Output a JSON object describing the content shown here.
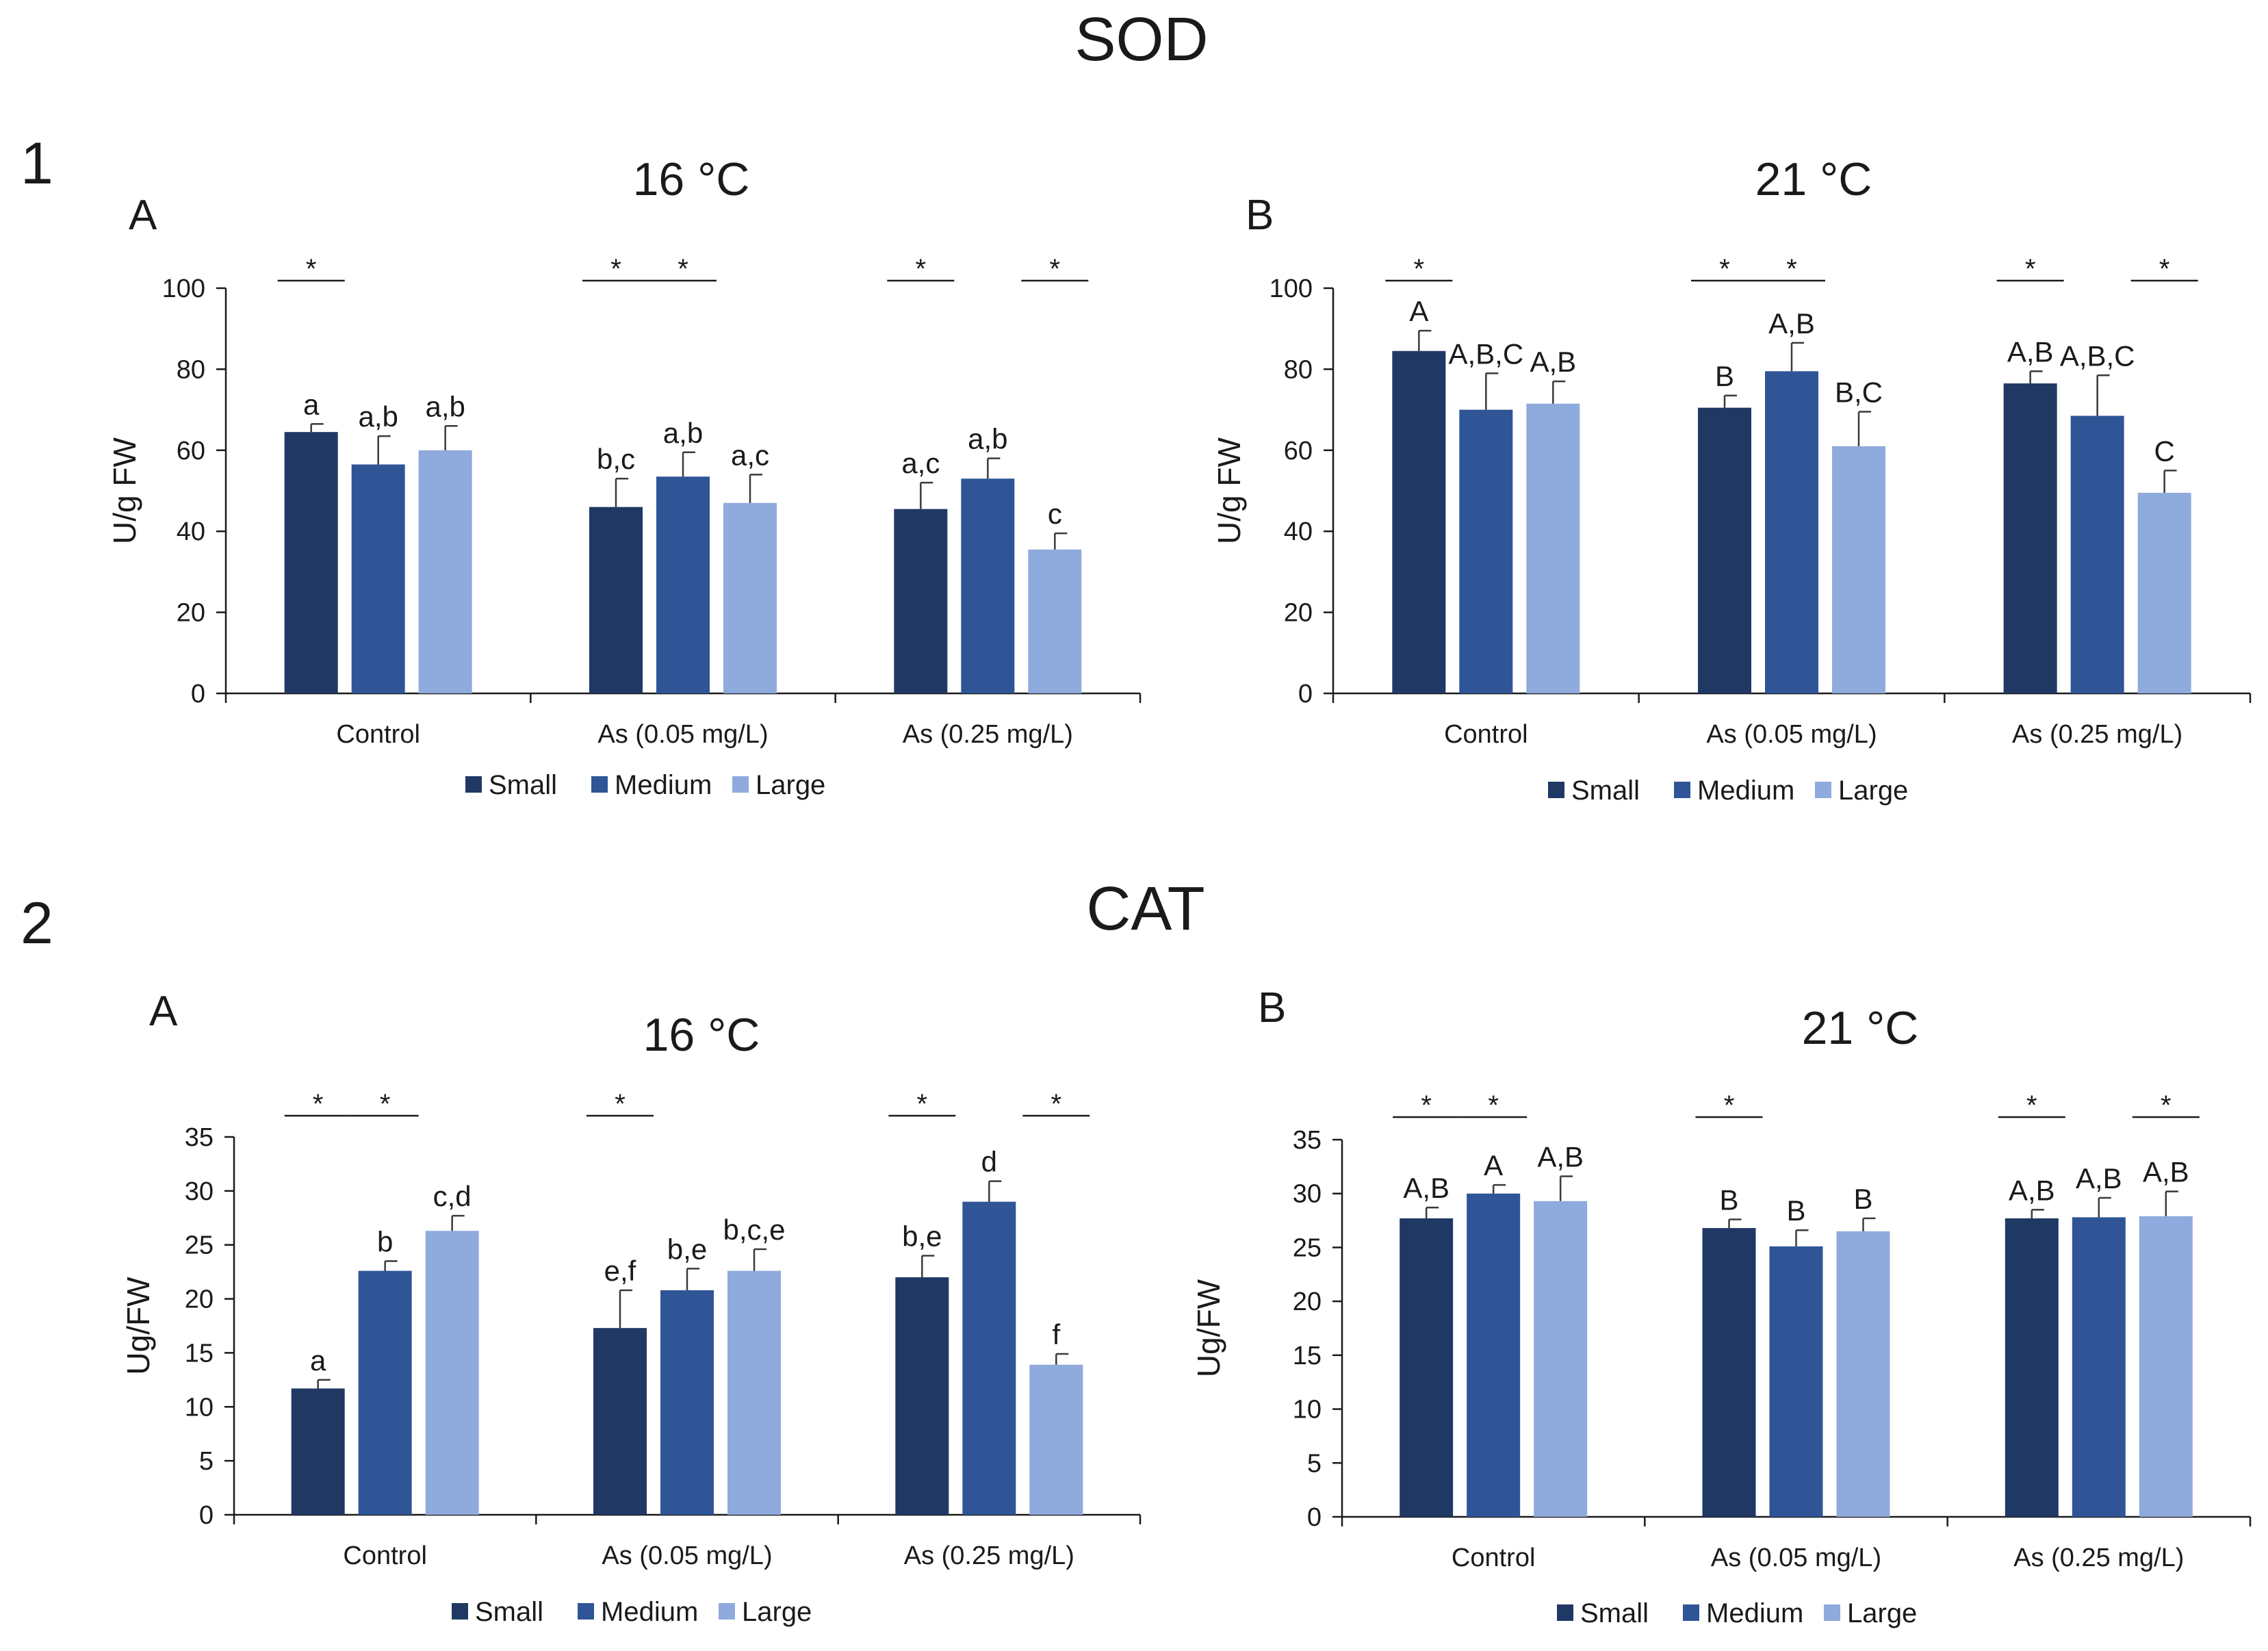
{
  "figure": {
    "section_1_number": "1",
    "section_1_title": "SOD",
    "section_2_number": "2",
    "section_2_title": "CAT"
  },
  "legend": {
    "labels": [
      "Small",
      "Medium",
      "Large"
    ],
    "colors": [
      "#203864",
      "#2f5597",
      "#8faadc"
    ]
  },
  "chart_data": [
    {
      "id": "sod16",
      "type": "bar",
      "panel_label": "A",
      "title": "16 °C",
      "ylabel": "U/g FW",
      "xlabel": "",
      "ylim": [
        0,
        100
      ],
      "yticks": [
        0,
        20,
        40,
        60,
        80,
        100
      ],
      "categories": [
        "Control",
        "As (0.05 mg/L)",
        "As (0.25 mg/L)"
      ],
      "series": [
        {
          "name": "Small",
          "values": [
            64.5,
            46,
            45.5
          ],
          "errors": [
            2,
            7,
            6.5
          ],
          "letters": [
            "a",
            "b,c",
            "a,c"
          ]
        },
        {
          "name": "Medium",
          "values": [
            56.5,
            53.5,
            53
          ],
          "errors": [
            7,
            6,
            5
          ],
          "letters": [
            "a,b",
            "a,b",
            "a,b"
          ]
        },
        {
          "name": "Large",
          "values": [
            60,
            47,
            35.5
          ],
          "errors": [
            6,
            7,
            4
          ],
          "letters": [
            "a,b",
            "a,c",
            "c"
          ]
        }
      ],
      "significance": [
        {
          "group": 0,
          "pair": [
            0,
            0
          ],
          "label": "*"
        },
        {
          "group": 1,
          "pair": [
            0,
            0
          ],
          "label": "*"
        },
        {
          "group": 1,
          "pair": [
            1,
            1
          ],
          "label": "*"
        },
        {
          "group": 2,
          "pair": [
            0,
            0
          ],
          "label": "*"
        },
        {
          "group": 2,
          "pair": [
            2,
            2
          ],
          "label": "*"
        }
      ]
    },
    {
      "id": "sod21",
      "type": "bar",
      "panel_label": "B",
      "title": "21 °C",
      "ylabel": "U/g FW",
      "xlabel": "",
      "ylim": [
        0,
        100
      ],
      "yticks": [
        0,
        20,
        40,
        60,
        80,
        100
      ],
      "categories": [
        "Control",
        "As (0.05 mg/L)",
        "As (0.25 mg/L)"
      ],
      "series": [
        {
          "name": "Small",
          "values": [
            84.5,
            70.5,
            76.5
          ],
          "errors": [
            5,
            3,
            3
          ],
          "letters": [
            "A",
            "B",
            "A,B"
          ]
        },
        {
          "name": "Medium",
          "values": [
            70,
            79.5,
            68.5
          ],
          "errors": [
            9,
            7,
            10
          ],
          "letters": [
            "A,B,C",
            "A,B",
            "A,B,C"
          ]
        },
        {
          "name": "Large",
          "values": [
            71.5,
            61,
            49.5
          ],
          "errors": [
            5.5,
            8.5,
            5.5
          ],
          "letters": [
            "A,B",
            "B,C",
            "C"
          ]
        }
      ],
      "significance": [
        {
          "group": 0,
          "pair": [
            0,
            0
          ],
          "label": "*"
        },
        {
          "group": 1,
          "pair": [
            0,
            0
          ],
          "label": "*"
        },
        {
          "group": 1,
          "pair": [
            1,
            1
          ],
          "label": "*"
        },
        {
          "group": 2,
          "pair": [
            0,
            0
          ],
          "label": "*"
        },
        {
          "group": 2,
          "pair": [
            2,
            2
          ],
          "label": "*"
        }
      ]
    },
    {
      "id": "cat16",
      "type": "bar",
      "panel_label": "A",
      "title": "16 °C",
      "ylabel": "Ug/FW",
      "xlabel": "",
      "ylim": [
        0,
        35
      ],
      "yticks": [
        0,
        5,
        10,
        15,
        20,
        25,
        30,
        35
      ],
      "categories": [
        "Control",
        "As (0.05 mg/L)",
        "As (0.25 mg/L)"
      ],
      "series": [
        {
          "name": "Small",
          "values": [
            11.7,
            17.3,
            22
          ],
          "errors": [
            0.8,
            3.5,
            2
          ],
          "letters": [
            "a",
            "e,f",
            "b,e"
          ]
        },
        {
          "name": "Medium",
          "values": [
            22.6,
            20.8,
            29
          ],
          "errors": [
            0.9,
            2,
            1.9
          ],
          "letters": [
            "b",
            "b,e",
            "d"
          ]
        },
        {
          "name": "Large",
          "values": [
            26.3,
            22.6,
            13.9
          ],
          "errors": [
            1.4,
            2,
            1
          ],
          "letters": [
            "c,d",
            "b,c,e",
            "f"
          ]
        }
      ],
      "significance": [
        {
          "group": 0,
          "pair": [
            0,
            0
          ],
          "label": "*"
        },
        {
          "group": 0,
          "pair": [
            1,
            1
          ],
          "label": "*"
        },
        {
          "group": 1,
          "pair": [
            0,
            0
          ],
          "label": "*"
        },
        {
          "group": 2,
          "pair": [
            0,
            0
          ],
          "label": "*"
        },
        {
          "group": 2,
          "pair": [
            2,
            2
          ],
          "label": "*"
        }
      ]
    },
    {
      "id": "cat21",
      "type": "bar",
      "panel_label": "B",
      "title": "21 °C",
      "ylabel": "Ug/FW",
      "xlabel": "",
      "ylim": [
        0,
        35
      ],
      "yticks": [
        0,
        5,
        10,
        15,
        20,
        25,
        30,
        35
      ],
      "categories": [
        "Control",
        "As (0.05 mg/L)",
        "As (0.25 mg/L)"
      ],
      "series": [
        {
          "name": "Small",
          "values": [
            27.7,
            26.8,
            27.7
          ],
          "errors": [
            1,
            0.8,
            0.8
          ],
          "letters": [
            "A,B",
            "B",
            "A,B"
          ]
        },
        {
          "name": "Medium",
          "values": [
            30,
            25.1,
            27.8
          ],
          "errors": [
            0.8,
            1.5,
            1.8
          ],
          "letters": [
            "A",
            "B",
            "A,B"
          ]
        },
        {
          "name": "Large",
          "values": [
            29.3,
            26.5,
            27.9
          ],
          "errors": [
            2.3,
            1.2,
            2.3
          ],
          "letters": [
            "A,B",
            "B",
            "A,B"
          ]
        }
      ],
      "significance": [
        {
          "group": 0,
          "pair": [
            0,
            0
          ],
          "label": "*"
        },
        {
          "group": 0,
          "pair": [
            1,
            1
          ],
          "label": "*"
        },
        {
          "group": 1,
          "pair": [
            0,
            0
          ],
          "label": "*"
        },
        {
          "group": 2,
          "pair": [
            0,
            0
          ],
          "label": "*"
        },
        {
          "group": 2,
          "pair": [
            2,
            2
          ],
          "label": "*"
        }
      ]
    }
  ]
}
